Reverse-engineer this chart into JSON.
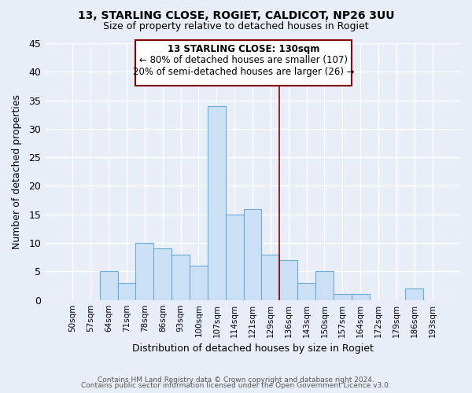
{
  "title": "13, STARLING CLOSE, ROGIET, CALDICOT, NP26 3UU",
  "subtitle": "Size of property relative to detached houses in Rogiet",
  "xlabel": "Distribution of detached houses by size in Rogiet",
  "ylabel": "Number of detached properties",
  "footer_line1": "Contains HM Land Registry data © Crown copyright and database right 2024.",
  "footer_line2": "Contains public sector information licensed under the Open Government Licence v3.0.",
  "bins": [
    "50sqm",
    "57sqm",
    "64sqm",
    "71sqm",
    "78sqm",
    "86sqm",
    "93sqm",
    "100sqm",
    "107sqm",
    "114sqm",
    "121sqm",
    "129sqm",
    "136sqm",
    "143sqm",
    "150sqm",
    "157sqm",
    "164sqm",
    "172sqm",
    "179sqm",
    "186sqm",
    "193sqm"
  ],
  "values": [
    0,
    0,
    5,
    3,
    10,
    9,
    8,
    6,
    34,
    15,
    16,
    8,
    7,
    3,
    5,
    1,
    1,
    0,
    0,
    2,
    0
  ],
  "bar_color": "#cce0f5",
  "bar_edge_color": "#6aaad4",
  "ylim": [
    0,
    45
  ],
  "yticks": [
    0,
    5,
    10,
    15,
    20,
    25,
    30,
    35,
    40,
    45
  ],
  "vline_x": 11.5,
  "vline_color": "#8b0000",
  "ann_title": "13 STARLING CLOSE: 130sqm",
  "ann_line1": "← 80% of detached houses are smaller (107)",
  "ann_line2": "20% of semi-detached houses are larger (26) →",
  "ann_box_color": "#ffffff",
  "ann_border_color": "#8b0000",
  "background_color": "#e8eef8",
  "grid_color": "#ffffff",
  "title_fontsize": 10,
  "subtitle_fontsize": 9
}
